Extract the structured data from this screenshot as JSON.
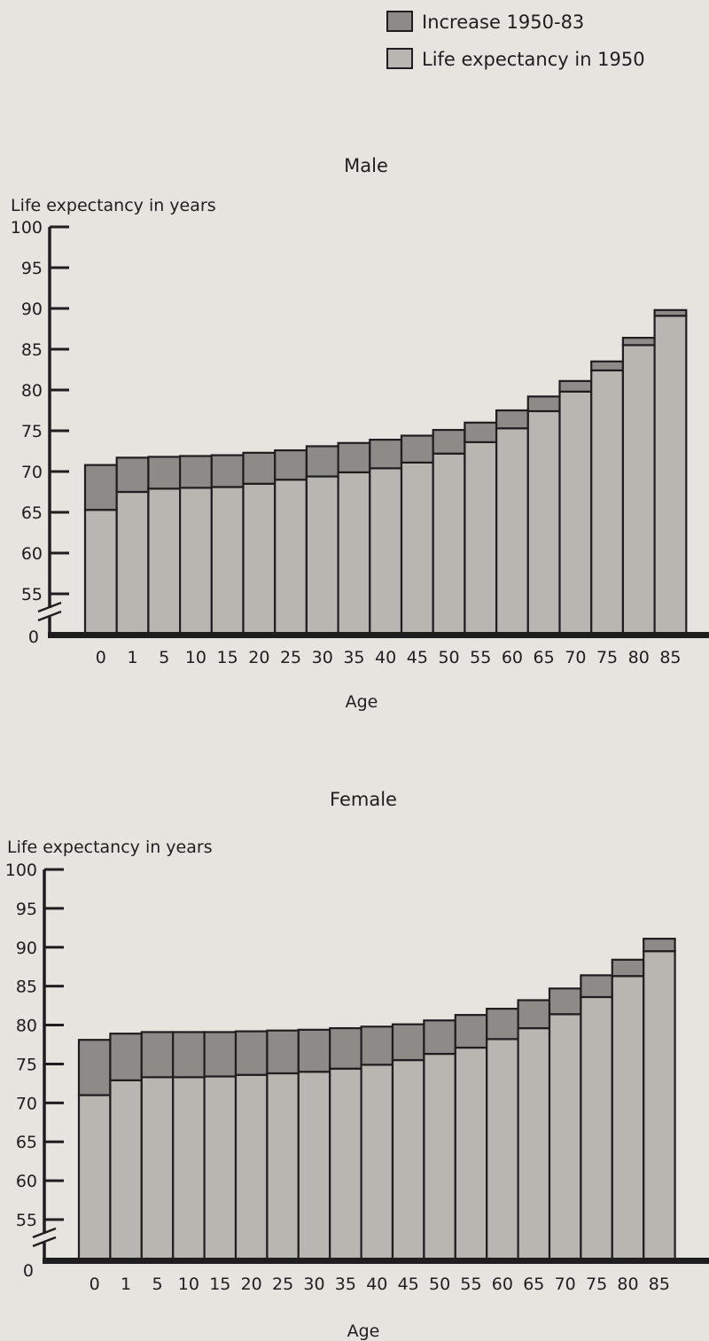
{
  "legend": {
    "placement": "top-right",
    "items": [
      {
        "label": "Increase 1950-83",
        "color": "#8d8b88"
      },
      {
        "label": "Life expectancy in 1950",
        "color": "#b8b6b1"
      }
    ]
  },
  "colors": {
    "background": "#e6e4de",
    "base_bar": "#b8b6b1",
    "increase_bar": "#8d8b88",
    "axis": "#1e1e1e"
  },
  "chart_data": [
    {
      "type": "bar",
      "stacked": true,
      "title": "Male",
      "xlabel": "Age",
      "ylabel": "Life expectancy in years",
      "ylim": [
        55,
        100
      ],
      "y_axis_break": true,
      "y_ticks": [
        100,
        95,
        90,
        85,
        80,
        75,
        70,
        65,
        60,
        55
      ],
      "y_zero_label": "0",
      "grid": false,
      "categories": [
        "0",
        "1",
        "5",
        "10",
        "15",
        "20",
        "25",
        "30",
        "35",
        "40",
        "45",
        "50",
        "55",
        "60",
        "65",
        "70",
        "75",
        "80",
        "85"
      ],
      "series": [
        {
          "name": "Life expectancy in 1950",
          "values": [
            65.3,
            67.5,
            67.9,
            68.0,
            68.1,
            68.5,
            69.0,
            69.4,
            69.9,
            70.4,
            71.1,
            72.2,
            73.6,
            75.3,
            77.4,
            79.8,
            82.4,
            85.5,
            89.1
          ]
        },
        {
          "name": "Increase 1950-83",
          "values": [
            5.5,
            4.2,
            3.9,
            3.9,
            3.9,
            3.8,
            3.6,
            3.7,
            3.6,
            3.5,
            3.3,
            2.9,
            2.4,
            2.2,
            1.8,
            1.3,
            1.1,
            0.9,
            0.7
          ]
        }
      ]
    },
    {
      "type": "bar",
      "stacked": true,
      "title": "Female",
      "xlabel": "Age",
      "ylabel": "Life expectancy in years",
      "ylim": [
        55,
        100
      ],
      "y_axis_break": true,
      "y_ticks": [
        100,
        95,
        90,
        85,
        80,
        75,
        70,
        65,
        60,
        55
      ],
      "y_zero_label": "0",
      "grid": false,
      "categories": [
        "0",
        "1",
        "5",
        "10",
        "15",
        "20",
        "25",
        "30",
        "35",
        "40",
        "45",
        "50",
        "55",
        "60",
        "65",
        "70",
        "75",
        "80",
        "85"
      ],
      "series": [
        {
          "name": "Life expectancy in 1950",
          "values": [
            71.0,
            72.9,
            73.3,
            73.3,
            73.4,
            73.6,
            73.8,
            74.0,
            74.4,
            74.9,
            75.5,
            76.3,
            77.1,
            78.2,
            79.6,
            81.4,
            83.6,
            86.3,
            89.5
          ]
        },
        {
          "name": "Increase 1950-83",
          "values": [
            7.1,
            6.0,
            5.8,
            5.8,
            5.7,
            5.6,
            5.5,
            5.4,
            5.2,
            4.9,
            4.6,
            4.3,
            4.2,
            3.9,
            3.6,
            3.3,
            2.8,
            2.1,
            1.6
          ]
        }
      ]
    }
  ]
}
